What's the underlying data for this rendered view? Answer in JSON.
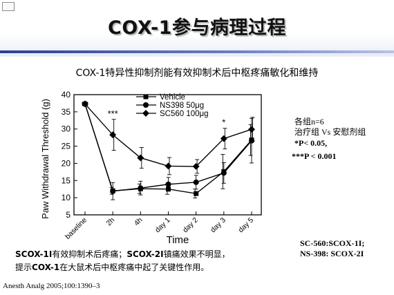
{
  "slide": {
    "title": "COX-1参与病理过程",
    "subtitle": "COX-1特异性抑制剂能有效抑制术后中枢疼痛敏化和维持"
  },
  "chart_data": {
    "type": "line",
    "ylabel": "Paw Withdrawal Threshold (g)",
    "xlabel": "Time",
    "categories": [
      "baseline",
      "2h",
      "4h",
      "day 1",
      "day 2",
      "day 3",
      "day 5"
    ],
    "ylim": [
      5,
      40
    ],
    "yticks": [
      5,
      10,
      15,
      20,
      25,
      30,
      35,
      40
    ],
    "legend_position": "top-center",
    "series": [
      {
        "name": "Vehicle",
        "marker": "square",
        "values": [
          37.3,
          12.0,
          12.6,
          12.5,
          11.2,
          17.6,
          26.8
        ],
        "errors": [
          0.4,
          1.0,
          1.4,
          1.5,
          1.3,
          5.0,
          4.5
        ]
      },
      {
        "name": "NS398 50μg",
        "marker": "circle",
        "values": [
          37.3,
          11.9,
          12.8,
          13.9,
          14.5,
          17.2,
          26.6
        ],
        "errors": [
          0.4,
          2.5,
          2.0,
          2.0,
          2.0,
          3.0,
          6.5
        ]
      },
      {
        "name": "SC560 100μg",
        "marker": "diamond",
        "values": [
          37.3,
          28.3,
          21.6,
          19.2,
          19.1,
          27.2,
          29.9
        ],
        "errors": [
          0.4,
          4.5,
          3.0,
          2.5,
          2.0,
          3.0,
          3.5
        ]
      }
    ],
    "annotations": [
      {
        "category": "2h",
        "text": "***"
      },
      {
        "category": "day 3",
        "text": "*"
      }
    ]
  },
  "notes": {
    "n_line": "各组n=6",
    "group_line": "治疗组 Vs 安慰剂组",
    "p1": "*P< 0.05,",
    "p2": "***P <  0.001",
    "abbr1": "SC-560:SCOX-1I;",
    "abbr2": "NS-398: SCOX-2I"
  },
  "summary": {
    "line1_term1": "SCOX-1I",
    "line1_text1": "有效抑制术后疼痛；",
    "line1_term2": "SCOX-2I",
    "line1_text2": "镇痛效果不明显，",
    "line2_prefix": "提示",
    "line2_term": "COX-1",
    "line2_text": "在大鼠术后中枢疼痛中起了关键性作用。"
  },
  "citation": "Anesth Analg 2005;100:1390–3",
  "colors": {
    "rule": "#2c3f8f",
    "text": "#000000"
  }
}
